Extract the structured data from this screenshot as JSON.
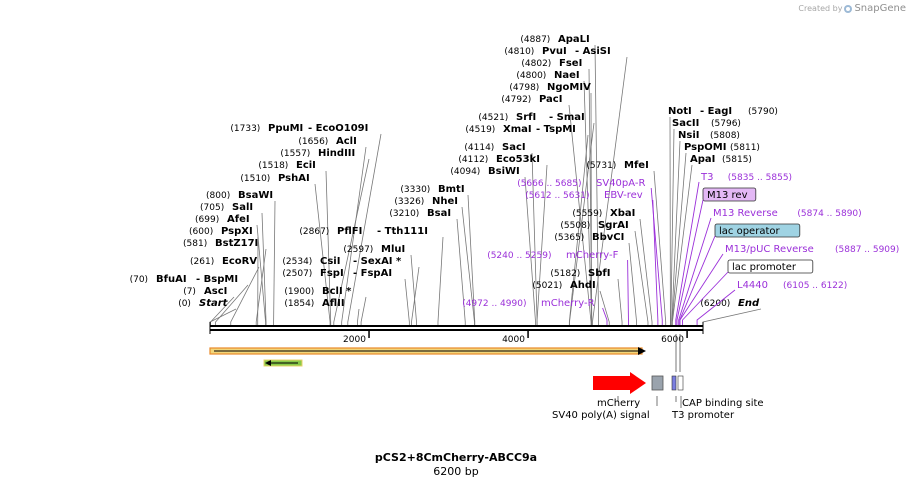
{
  "branding": {
    "created_by": "Created by",
    "app_name": "SnapGene"
  },
  "plasmid": {
    "name": "pCS2+8CmCherry-ABCC9a",
    "length_label": "6200 bp",
    "length_bp": 6200
  },
  "ruler": {
    "ticks": [
      2000,
      4000,
      6000
    ]
  },
  "sites": [
    {
      "pos": "(0)",
      "name": "Start",
      "bp": 0,
      "italic": true
    },
    {
      "pos": "(7)",
      "name": "AscI",
      "bp": 7
    },
    {
      "pos": "(70)",
      "name": "BfuAI",
      "bp": 70,
      "partner": "- BspMI"
    },
    {
      "pos": "(261)",
      "name": "EcoRV",
      "bp": 261
    },
    {
      "pos": "(581)",
      "name": "BstZ17I",
      "bp": 581
    },
    {
      "pos": "(600)",
      "name": "PspXI",
      "bp": 600
    },
    {
      "pos": "(699)",
      "name": "AfeI",
      "bp": 699
    },
    {
      "pos": "(705)",
      "name": "SalI",
      "bp": 705
    },
    {
      "pos": "(800)",
      "name": "BsaWI",
      "bp": 800
    },
    {
      "pos": "(1510)",
      "name": "PshAI",
      "bp": 1510
    },
    {
      "pos": "(1518)",
      "name": "EciI",
      "bp": 1518
    },
    {
      "pos": "(1557)",
      "name": "HindIII",
      "bp": 1557
    },
    {
      "pos": "(1656)",
      "name": "AclI",
      "bp": 1656
    },
    {
      "pos": "(1733)",
      "name": "PpuMI",
      "bp": 1733,
      "partner": "- EcoO109I"
    },
    {
      "pos": "(1854)",
      "name": "AflII",
      "bp": 1854
    },
    {
      "pos": "(1900)",
      "name": "BclI *",
      "bp": 1900
    },
    {
      "pos": "(2507)",
      "name": "FspI",
      "bp": 2507,
      "partner": "- FspAI"
    },
    {
      "pos": "(2534)",
      "name": "CsiI",
      "bp": 2534,
      "partner": "- SexAI *"
    },
    {
      "pos": "(2597)",
      "name": "MluI",
      "bp": 2597
    },
    {
      "pos": "(2867)",
      "name": "PflFI",
      "bp": 2867,
      "partner": "- Tth111I"
    },
    {
      "pos": "(3210)",
      "name": "BsaI",
      "bp": 3210
    },
    {
      "pos": "(3326)",
      "name": "NheI",
      "bp": 3326
    },
    {
      "pos": "(3330)",
      "name": "BmtI",
      "bp": 3330
    },
    {
      "pos": "(4094)",
      "name": "BsiWI",
      "bp": 4094
    },
    {
      "pos": "(4112)",
      "name": "Eco53kI",
      "bp": 4112
    },
    {
      "pos": "(4114)",
      "name": "SacI",
      "bp": 4114
    },
    {
      "pos": "(4519)",
      "name": "XmaI",
      "bp": 4519,
      "partner": "- TspMI"
    },
    {
      "pos": "(4521)",
      "name": "SrfI",
      "bp": 4521,
      "partner": "- SmaI"
    },
    {
      "pos": "(4792)",
      "name": "PacI",
      "bp": 4792
    },
    {
      "pos": "(4798)",
      "name": "NgoMIV",
      "bp": 4798
    },
    {
      "pos": "(4800)",
      "name": "NaeI",
      "bp": 4800
    },
    {
      "pos": "(4802)",
      "name": "FseI",
      "bp": 4802
    },
    {
      "pos": "(4810)",
      "name": "PvuI",
      "bp": 4810,
      "partner": "- AsiSI"
    },
    {
      "pos": "(4887)",
      "name": "ApaLI",
      "bp": 4887
    },
    {
      "pos": "(5021)",
      "name": "AhdI",
      "bp": 5021
    },
    {
      "pos": "(5182)",
      "name": "SbfI",
      "bp": 5182
    },
    {
      "pos": "(5365)",
      "name": "BbvCI",
      "bp": 5365
    },
    {
      "pos": "(5508)",
      "name": "SgrAI",
      "bp": 5508
    },
    {
      "pos": "(5559)",
      "name": "XbaI",
      "bp": 5559
    },
    {
      "pos": "(5731)",
      "name": "MfeI",
      "bp": 5731
    },
    {
      "pos": "(5815)",
      "name": "ApaI",
      "bp": 5815
    },
    {
      "pos": "(5811)",
      "name": "PspOMI",
      "bp": 5811
    },
    {
      "pos": "(5808)",
      "name": "NsiI",
      "bp": 5808
    },
    {
      "pos": "(5796)",
      "name": "SacII",
      "bp": 5796
    },
    {
      "pos": "(5790)",
      "name": "NotI",
      "bp": 5790,
      "partner": "- EagI"
    },
    {
      "pos": "(6200)",
      "name": "End",
      "bp": 6200,
      "italic": true
    }
  ],
  "annotations": [
    {
      "name": "SV40pA-R",
      "range": "(5666 .. 5685)",
      "bp": 5675
    },
    {
      "name": "EBV-rev",
      "range": "(5612 .. 5631)",
      "bp": 5620
    },
    {
      "name": "mCherry-F",
      "range": "(5240 .. 5259)",
      "bp": 5250
    },
    {
      "name": "mCherry-R",
      "range": "(4972 .. 4990)",
      "bp": 4980
    },
    {
      "name": "T3",
      "range": "(5835 .. 5855)",
      "bp": 5845
    },
    {
      "name": "M13 rev",
      "range": "",
      "bp": 5860,
      "style": "box-purple"
    },
    {
      "name": "M13 Reverse",
      "range": "(5874 .. 5890)",
      "bp": 5882
    },
    {
      "name": "lac operator",
      "range": "",
      "bp": 5895,
      "style": "box-blue"
    },
    {
      "name": "M13/pUC Reverse",
      "range": "(5887 .. 5909)",
      "bp": 5898
    },
    {
      "name": "lac promoter",
      "range": "",
      "bp": 5930,
      "style": "box-white"
    },
    {
      "name": "L4440",
      "range": "(6105 .. 6122)",
      "bp": 6113
    }
  ],
  "features": [
    {
      "name": "mCherry",
      "bp": 4800
    },
    {
      "name": "SV40 poly(A) signal",
      "bp": 5600
    },
    {
      "name": "CAP binding site",
      "bp": 5970
    },
    {
      "name": "T3 promoter",
      "bp": 5840
    }
  ],
  "colors": {
    "backbone": "#000000",
    "orf_fill": "#f2d67a",
    "orf_border": "#e88a2a",
    "orf_arrow": "#000000",
    "small_orf": "#88c948",
    "primer": "#9b30d9",
    "mcherry": "#ff0000",
    "polyA": "#9aa3ad",
    "m13_box": "#e3b8f5",
    "lac_op_box": "#9fd3e3",
    "cap_site": "#7a7ee0"
  }
}
